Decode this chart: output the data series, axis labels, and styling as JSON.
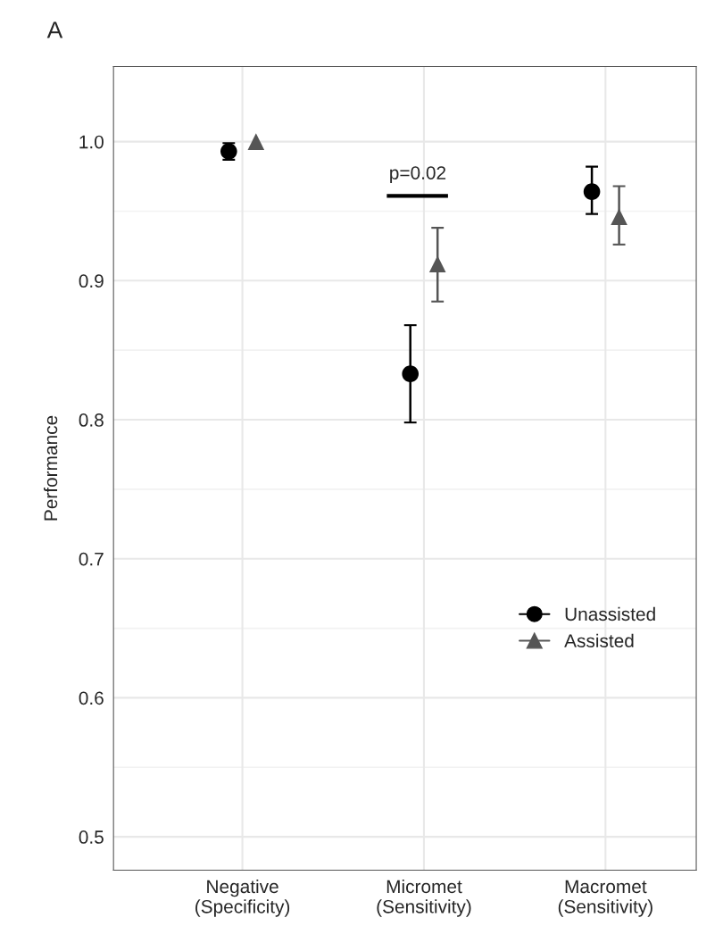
{
  "chart_data": {
    "type": "scatter",
    "ylabel": "Performance",
    "categories": [
      "Negative\n(Specificity)",
      "Micromet\n(Sensitivity)",
      "Macromet\n(Sensitivity)"
    ],
    "series": [
      {
        "name": "Unassisted",
        "color": "#000000",
        "marker": "circle",
        "values": [
          0.993,
          0.833,
          0.964
        ],
        "errors": [
          [
            0.987,
            0.999
          ],
          [
            0.798,
            0.868
          ],
          [
            0.948,
            0.982
          ]
        ]
      },
      {
        "name": "Assisted",
        "color": "#555555",
        "marker": "triangle",
        "values": [
          1.0,
          0.912,
          0.946
        ],
        "errors": [
          null,
          [
            0.885,
            0.938
          ],
          [
            0.926,
            0.968
          ]
        ]
      }
    ],
    "ylim": [
      0.476,
      1.054
    ],
    "yticks": [
      0.5,
      0.6,
      0.7,
      0.8,
      0.9,
      {
        "value": 1.0,
        "label": "1.0"
      }
    ],
    "grid": true,
    "legend": "right",
    "annotations": [
      "A",
      "p=0.02"
    ]
  }
}
